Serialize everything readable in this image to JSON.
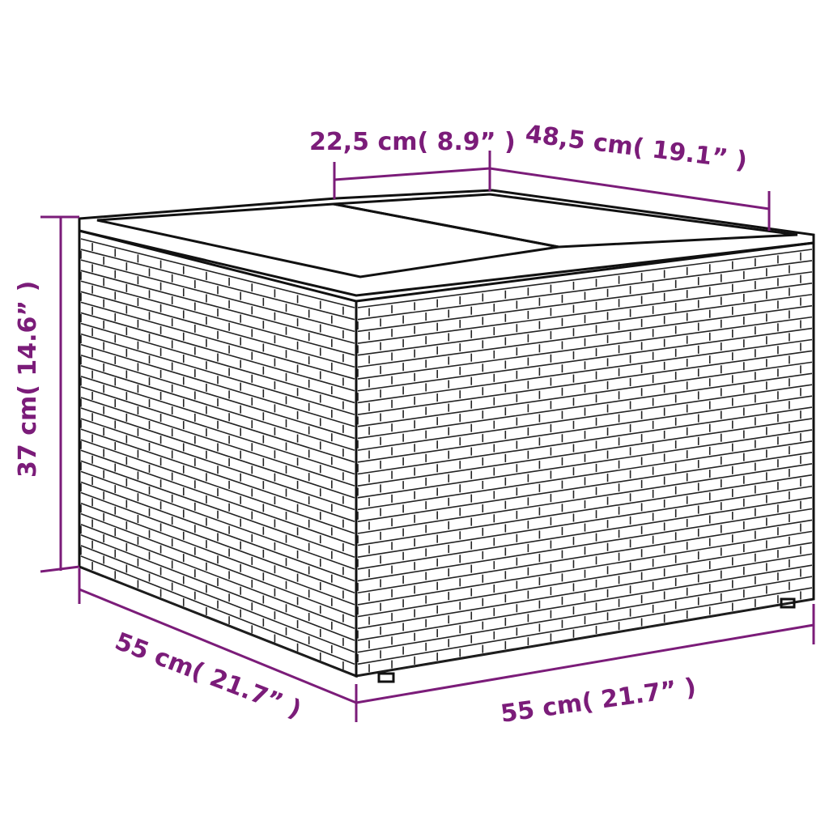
{
  "product": "rattan storage side table with glass top",
  "dimensions": {
    "top_depth_section": "22,5 cm( 8.9”  )",
    "top_width_section": "48,5 cm( 19.1”  )",
    "height": "37 cm( 14.6”  )",
    "depth": "55 cm( 21.7”  )",
    "width": "55 cm( 21.7”  )"
  },
  "colors": {
    "dimension": "#7b1c79",
    "outline": "#111111"
  }
}
